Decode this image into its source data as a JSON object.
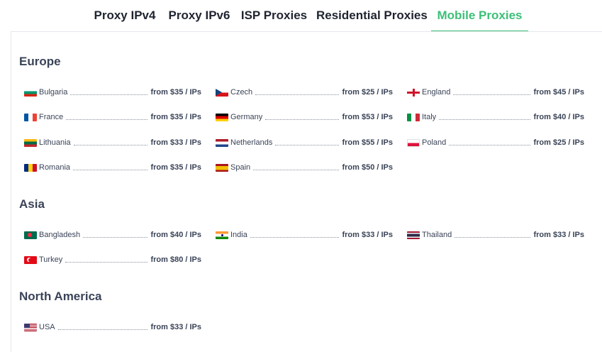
{
  "tabs": [
    {
      "label": "Proxy IPv4"
    },
    {
      "label": "Proxy IPv6"
    },
    {
      "label": "ISP Proxies"
    },
    {
      "label": "Residential Proxies"
    },
    {
      "label": "Mobile Proxies",
      "active": true
    }
  ],
  "regions": {
    "europe": {
      "title": "Europe",
      "items": [
        {
          "country": "Bulgaria",
          "price": "from $35 / IPs",
          "flag": "bulgaria-flag-icon"
        },
        {
          "country": "Czech",
          "price": "from $25 / IPs",
          "flag": "czech-flag-icon"
        },
        {
          "country": "England",
          "price": "from $45 / IPs",
          "flag": "england-flag-icon"
        },
        {
          "country": "France",
          "price": "from $35 / IPs",
          "flag": "france-flag-icon"
        },
        {
          "country": "Germany",
          "price": "from $53 / IPs",
          "flag": "germany-flag-icon"
        },
        {
          "country": "Italy",
          "price": "from $40 / IPs",
          "flag": "italy-flag-icon"
        },
        {
          "country": "Lithuania",
          "price": "from $33 / IPs",
          "flag": "lithuania-flag-icon"
        },
        {
          "country": "Netherlands",
          "price": "from $55 / IPs",
          "flag": "netherlands-flag-icon"
        },
        {
          "country": "Poland",
          "price": "from $25 / IPs",
          "flag": "poland-flag-icon"
        },
        {
          "country": "Romania",
          "price": "from $35 / IPs",
          "flag": "romania-flag-icon"
        },
        {
          "country": "Spain",
          "price": "from $50 / IPs",
          "flag": "spain-flag-icon"
        }
      ]
    },
    "asia": {
      "title": "Asia",
      "items": [
        {
          "country": "Bangladesh",
          "price": "from $40 / IPs",
          "flag": "bangladesh-flag-icon"
        },
        {
          "country": "India",
          "price": "from $33 / IPs",
          "flag": "india-flag-icon"
        },
        {
          "country": "Thailand",
          "price": "from $33 / IPs",
          "flag": "thailand-flag-icon"
        },
        {
          "country": "Turkey",
          "price": "from $80 / IPs",
          "flag": "turkey-flag-icon"
        }
      ]
    },
    "north_america": {
      "title": "North America",
      "items": [
        {
          "country": "USA",
          "price": "from $33 / IPs",
          "flag": "usa-flag-icon"
        }
      ]
    }
  },
  "colors": {
    "accent": "#3dbf78",
    "text": "#3a4357"
  }
}
